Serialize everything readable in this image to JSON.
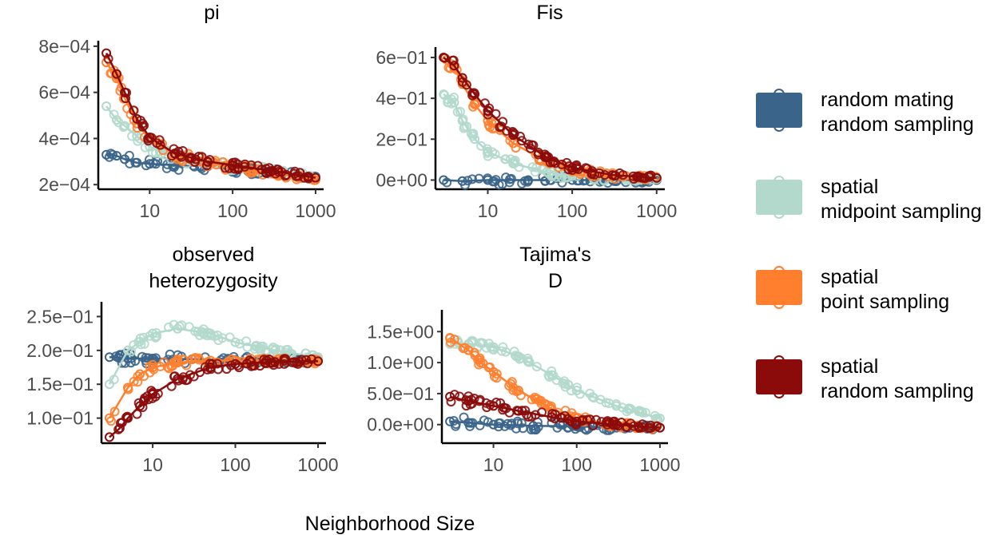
{
  "figure": {
    "xlabel": "Neighborhood Size",
    "colors": {
      "random_mating_random_sampling": "#3a6489",
      "spatial_midpoint_sampling": "#b3d9cc",
      "spatial_point_sampling": "#ff7f2f",
      "spatial_random_sampling": "#8b0a0a"
    },
    "legend": {
      "position": "right",
      "items": [
        {
          "key": "random_mating_random_sampling",
          "line1": "random mating",
          "line2": "random sampling"
        },
        {
          "key": "spatial_midpoint_sampling",
          "line1": "spatial",
          "line2": "midpoint sampling"
        },
        {
          "key": "spatial_point_sampling",
          "line1": "spatial",
          "line2": "point sampling"
        },
        {
          "key": "spatial_random_sampling",
          "line1": "spatial",
          "line2": "random sampling"
        }
      ]
    }
  },
  "chart_data": [
    {
      "type": "scatter",
      "title": [
        "pi"
      ],
      "x_scale": "log",
      "xlim": [
        2.4,
        1250
      ],
      "x_ticks": [
        {
          "v": 10,
          "label": "10"
        },
        {
          "v": 100,
          "label": "100"
        },
        {
          "v": 1000,
          "label": "1000"
        }
      ],
      "ylim": [
        0.00018,
        0.00081
      ],
      "y_ticks": [
        {
          "v": 0.0002,
          "label": "2e−04"
        },
        {
          "v": 0.0004,
          "label": "4e−04"
        },
        {
          "v": 0.0006,
          "label": "6e−04"
        },
        {
          "v": 0.0008,
          "label": "8e−04"
        }
      ],
      "series": [
        {
          "key": "random_mating_random_sampling",
          "points": [
            [
              3,
              0.00033
            ],
            [
              4,
              0.000325
            ],
            [
              5,
              0.00031
            ],
            [
              7,
              0.000295
            ],
            [
              10,
              0.00029
            ],
            [
              20,
              0.000285
            ],
            [
              50,
              0.00028
            ],
            [
              100,
              0.000265
            ],
            [
              300,
              0.000255
            ],
            [
              1000,
              0.000235
            ]
          ]
        },
        {
          "key": "spatial_midpoint_sampling",
          "points": [
            [
              3,
              0.00054
            ],
            [
              4,
              0.00048
            ],
            [
              5,
              0.000455
            ],
            [
              7,
              0.00041
            ],
            [
              10,
              0.000365
            ],
            [
              20,
              0.00032
            ],
            [
              50,
              0.000295
            ],
            [
              100,
              0.000275
            ],
            [
              300,
              0.00026
            ],
            [
              1000,
              0.00023
            ]
          ]
        },
        {
          "key": "spatial_point_sampling",
          "points": [
            [
              3,
              0.00073
            ],
            [
              4,
              0.00066
            ],
            [
              5,
              0.000575
            ],
            [
              7,
              0.000465
            ],
            [
              10,
              0.0004
            ],
            [
              20,
              0.00033
            ],
            [
              50,
              0.000295
            ],
            [
              100,
              0.000275
            ],
            [
              300,
              0.00025
            ],
            [
              1000,
              0.00022
            ]
          ]
        },
        {
          "key": "spatial_random_sampling",
          "points": [
            [
              3,
              0.00077
            ],
            [
              4,
              0.00068
            ],
            [
              5,
              0.0006
            ],
            [
              7,
              0.000485
            ],
            [
              10,
              0.000405
            ],
            [
              20,
              0.000335
            ],
            [
              50,
              0.0003
            ],
            [
              100,
              0.000285
            ],
            [
              300,
              0.00026
            ],
            [
              1000,
              0.00023
            ]
          ]
        }
      ]
    },
    {
      "type": "scatter",
      "title": [
        "Fis"
      ],
      "x_scale": "log",
      "xlim": [
        2.4,
        1250
      ],
      "x_ticks": [
        {
          "v": 10,
          "label": "10"
        },
        {
          "v": 100,
          "label": "100"
        },
        {
          "v": 1000,
          "label": "1000"
        }
      ],
      "ylim": [
        -0.045,
        0.635
      ],
      "y_ticks": [
        {
          "v": 0,
          "label": "0e+00"
        },
        {
          "v": 0.2,
          "label": "2e−01"
        },
        {
          "v": 0.4,
          "label": "4e−01"
        },
        {
          "v": 0.6,
          "label": "6e−01"
        }
      ],
      "series": [
        {
          "key": "random_mating_random_sampling",
          "points": [
            [
              3,
              0.0
            ],
            [
              5,
              -0.005
            ],
            [
              10,
              0.0
            ],
            [
              30,
              0.0
            ],
            [
              100,
              0.0
            ],
            [
              300,
              0.0
            ],
            [
              1000,
              0.0
            ]
          ]
        },
        {
          "key": "spatial_midpoint_sampling",
          "points": [
            [
              3,
              0.42
            ],
            [
              4,
              0.38
            ],
            [
              5,
              0.29
            ],
            [
              7,
              0.2
            ],
            [
              10,
              0.14
            ],
            [
              20,
              0.08
            ],
            [
              50,
              0.04
            ],
            [
              100,
              0.02
            ],
            [
              300,
              0.01
            ],
            [
              1000,
              0.005
            ]
          ]
        },
        {
          "key": "spatial_point_sampling",
          "points": [
            [
              3,
              0.6
            ],
            [
              4,
              0.55
            ],
            [
              5,
              0.47
            ],
            [
              7,
              0.37
            ],
            [
              10,
              0.29
            ],
            [
              20,
              0.18
            ],
            [
              50,
              0.09
            ],
            [
              100,
              0.05
            ],
            [
              300,
              0.02
            ],
            [
              1000,
              0.01
            ]
          ]
        },
        {
          "key": "spatial_random_sampling",
          "points": [
            [
              3,
              0.6
            ],
            [
              4,
              0.56
            ],
            [
              5,
              0.5
            ],
            [
              7,
              0.42
            ],
            [
              10,
              0.34
            ],
            [
              20,
              0.22
            ],
            [
              50,
              0.11
            ],
            [
              100,
              0.06
            ],
            [
              300,
              0.025
            ],
            [
              1000,
              0.01
            ]
          ]
        }
      ]
    },
    {
      "type": "scatter",
      "title": [
        "observed",
        "heterozygosity"
      ],
      "x_scale": "log",
      "xlim": [
        2.4,
        1250
      ],
      "x_ticks": [
        {
          "v": 10,
          "label": "10"
        },
        {
          "v": 100,
          "label": "100"
        },
        {
          "v": 1000,
          "label": "1000"
        }
      ],
      "ylim": [
        0.063,
        0.267
      ],
      "y_ticks": [
        {
          "v": 0.1,
          "label": "1.0e−01"
        },
        {
          "v": 0.15,
          "label": "1.5e−01"
        },
        {
          "v": 0.2,
          "label": "2.0e−01"
        },
        {
          "v": 0.25,
          "label": "2.5e−01"
        }
      ],
      "series": [
        {
          "key": "random_mating_random_sampling",
          "points": [
            [
              3,
              0.19
            ],
            [
              5,
              0.188
            ],
            [
              10,
              0.188
            ],
            [
              30,
              0.187
            ],
            [
              100,
              0.186
            ],
            [
              300,
              0.185
            ],
            [
              1000,
              0.185
            ]
          ]
        },
        {
          "key": "spatial_midpoint_sampling",
          "points": [
            [
              3,
              0.15
            ],
            [
              5,
              0.2
            ],
            [
              10,
              0.225
            ],
            [
              20,
              0.232
            ],
            [
              50,
              0.225
            ],
            [
              100,
              0.212
            ],
            [
              300,
              0.2
            ],
            [
              1000,
              0.19
            ]
          ]
        },
        {
          "key": "spatial_point_sampling",
          "points": [
            [
              3,
              0.1
            ],
            [
              5,
              0.145
            ],
            [
              7,
              0.165
            ],
            [
              10,
              0.175
            ],
            [
              20,
              0.182
            ],
            [
              50,
              0.185
            ],
            [
              100,
              0.185
            ],
            [
              300,
              0.185
            ],
            [
              1000,
              0.184
            ]
          ]
        },
        {
          "key": "spatial_random_sampling",
          "points": [
            [
              3,
              0.072
            ],
            [
              4,
              0.085
            ],
            [
              5,
              0.1
            ],
            [
              7,
              0.118
            ],
            [
              10,
              0.135
            ],
            [
              20,
              0.158
            ],
            [
              50,
              0.175
            ],
            [
              100,
              0.18
            ],
            [
              300,
              0.183
            ],
            [
              1000,
              0.184
            ]
          ]
        }
      ]
    },
    {
      "type": "scatter",
      "title": [
        "Tajima's",
        "D"
      ],
      "x_scale": "log",
      "xlim": [
        2.4,
        1250
      ],
      "x_ticks": [
        {
          "v": 10,
          "label": "10"
        },
        {
          "v": 100,
          "label": "100"
        },
        {
          "v": 1000,
          "label": "1000"
        }
      ],
      "ylim": [
        -0.3,
        1.8
      ],
      "y_ticks": [
        {
          "v": 0,
          "label": "0.0e+00"
        },
        {
          "v": 0.5,
          "label": "5.0e−01"
        },
        {
          "v": 1.0,
          "label": "1.0e+00"
        },
        {
          "v": 1.5,
          "label": "1.5e+00"
        }
      ],
      "series": [
        {
          "key": "random_mating_random_sampling",
          "points": [
            [
              3,
              0.05
            ],
            [
              5,
              0.03
            ],
            [
              10,
              0.0
            ],
            [
              30,
              -0.02
            ],
            [
              100,
              -0.03
            ],
            [
              300,
              -0.05
            ],
            [
              1000,
              -0.05
            ]
          ]
        },
        {
          "key": "spatial_midpoint_sampling",
          "points": [
            [
              3,
              1.3
            ],
            [
              5,
              1.3
            ],
            [
              10,
              1.25
            ],
            [
              20,
              1.1
            ],
            [
              50,
              0.8
            ],
            [
              100,
              0.55
            ],
            [
              300,
              0.3
            ],
            [
              1000,
              0.1
            ]
          ]
        },
        {
          "key": "spatial_point_sampling",
          "points": [
            [
              3,
              1.4
            ],
            [
              5,
              1.2
            ],
            [
              7,
              1.0
            ],
            [
              10,
              0.85
            ],
            [
              20,
              0.55
            ],
            [
              50,
              0.25
            ],
            [
              100,
              0.1
            ],
            [
              300,
              0.0
            ],
            [
              1000,
              -0.05
            ]
          ]
        },
        {
          "key": "spatial_random_sampling",
          "points": [
            [
              3,
              0.45
            ],
            [
              5,
              0.38
            ],
            [
              10,
              0.3
            ],
            [
              20,
              0.22
            ],
            [
              50,
              0.12
            ],
            [
              100,
              0.05
            ],
            [
              300,
              0.0
            ],
            [
              1000,
              -0.05
            ]
          ]
        }
      ]
    }
  ]
}
